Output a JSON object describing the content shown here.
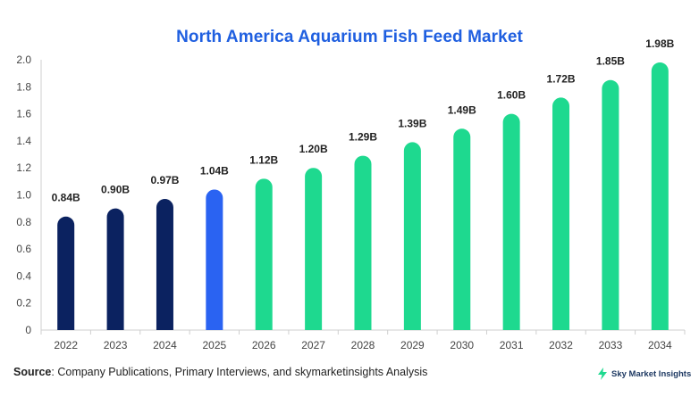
{
  "chart_data": {
    "type": "bar",
    "title": "North America Aquarium Fish Feed Market",
    "xlabel": "",
    "ylabel": "",
    "categories": [
      "2022",
      "2023",
      "2024",
      "2025",
      "2026",
      "2027",
      "2028",
      "2029",
      "2030",
      "2031",
      "2032",
      "2033",
      "2034"
    ],
    "values": [
      0.84,
      0.9,
      0.97,
      1.04,
      1.12,
      1.2,
      1.29,
      1.39,
      1.49,
      1.6,
      1.72,
      1.85,
      1.98
    ],
    "data_labels": [
      "0.84B",
      "0.90B",
      "0.97B",
      "1.04B",
      "1.12B",
      "1.20B",
      "1.29B",
      "1.39B",
      "1.49B",
      "1.60B",
      "1.72B",
      "1.85B",
      "1.98B"
    ],
    "bar_colors": [
      "#0b2260",
      "#0b2260",
      "#0b2260",
      "#2a63f2",
      "#1ed98f",
      "#1ed98f",
      "#1ed98f",
      "#1ed98f",
      "#1ed98f",
      "#1ed98f",
      "#1ed98f",
      "#1ed98f",
      "#1ed98f"
    ],
    "ylim": [
      0,
      2.0
    ],
    "yticks": [
      0,
      0.2,
      0.4,
      0.6,
      0.8,
      1.0,
      1.2,
      1.4,
      1.6,
      1.8,
      2.0
    ],
    "ytick_labels": [
      "0",
      "0.2",
      "0.4",
      "0.6",
      "0.8",
      "1.0",
      "1.2",
      "1.4",
      "1.6",
      "1.8",
      "2.0"
    ],
    "grid": false,
    "legend": "none"
  },
  "source": {
    "label": "Source",
    "text": ": Company Publications, Primary Interviews, and skymarketinsights Analysis"
  },
  "brand": {
    "name": "Sky Market Insights",
    "logo_icon": "lightning-bolt-icon",
    "logo_color": "#1ed98f"
  }
}
